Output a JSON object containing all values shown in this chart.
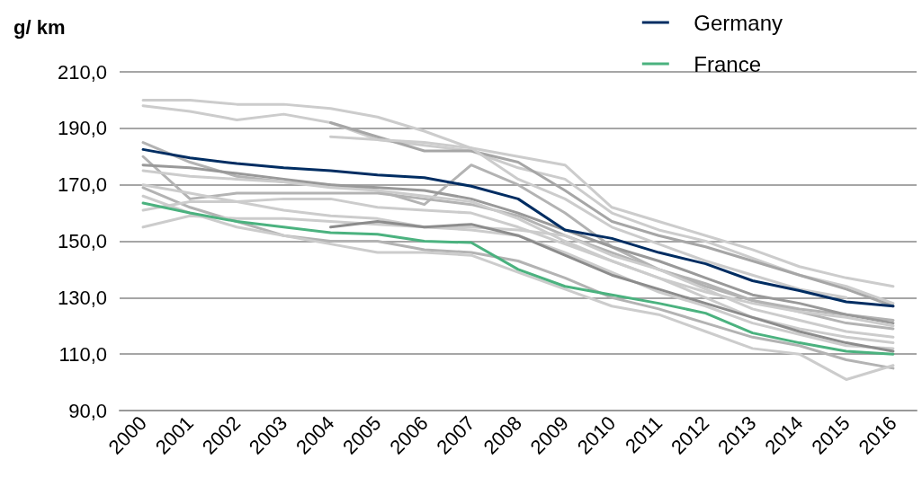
{
  "chart_data": {
    "type": "line",
    "ylabel": "g/ km",
    "categories": [
      "2000",
      "2001",
      "2002",
      "2003",
      "2004",
      "2005",
      "2006",
      "2007",
      "2008",
      "2009",
      "2010",
      "2011",
      "2012",
      "2013",
      "2014",
      "2015",
      "2016"
    ],
    "ylim": [
      90,
      210
    ],
    "yticks": [
      {
        "value": 90,
        "label": "90,0"
      },
      {
        "value": 110,
        "label": "110,0"
      },
      {
        "value": 130,
        "label": "130,0"
      },
      {
        "value": 150,
        "label": "150,0"
      },
      {
        "value": 170,
        "label": "170,0"
      },
      {
        "value": 190,
        "label": "190,0"
      },
      {
        "value": 210,
        "label": "210,0"
      }
    ],
    "grid": "y",
    "legend": "top right",
    "marker": "none",
    "line_style": "solid",
    "series": [
      {
        "color": "#cccccc",
        "values": [
          200,
          200,
          198.5,
          198.5,
          197,
          194,
          189,
          183,
          180,
          177,
          162,
          157,
          152,
          147,
          141,
          137,
          134
        ]
      },
      {
        "color": "#cccccc",
        "values": [
          198,
          196,
          193,
          195,
          192,
          186,
          184,
          182,
          176,
          172,
          160,
          154,
          150,
          144,
          138,
          134,
          128
        ]
      },
      {
        "color": "#a6a6a6",
        "values": [
          null,
          null,
          null,
          null,
          192,
          187,
          182,
          182,
          178,
          168,
          157,
          152,
          148,
          143,
          138,
          133,
          127
        ]
      },
      {
        "color": "#b3b3b3",
        "values": [
          185,
          178,
          173,
          171,
          170,
          168,
          163,
          177,
          170,
          160,
          148,
          140,
          135,
          129,
          125,
          121,
          119
        ]
      },
      {
        "color": "#b3b3b3",
        "values": [
          180,
          165,
          167,
          167,
          167,
          167,
          165,
          163,
          159,
          152,
          146,
          140,
          134,
          129,
          126,
          124,
          122
        ]
      },
      {
        "color": "#999999",
        "values": [
          177,
          176,
          174,
          172,
          170,
          169,
          168,
          165,
          160,
          154,
          148,
          143,
          137,
          131,
          128,
          124,
          121
        ]
      },
      {
        "color": "#cccccc",
        "values": [
          175,
          173,
          172,
          171,
          169,
          168,
          166,
          164,
          158,
          150,
          143,
          137,
          132,
          128,
          125,
          123,
          120
        ]
      },
      {
        "color": "#cccccc",
        "values": [
          170,
          167,
          164,
          161,
          159,
          158,
          155,
          155,
          154,
          152,
          145,
          140,
          133,
          126,
          122,
          118,
          116
        ]
      },
      {
        "color": "#b3b3b3",
        "values": [
          169,
          162,
          157,
          152,
          150,
          150,
          147,
          146,
          143,
          137,
          130,
          126,
          121,
          116,
          113,
          108,
          105
        ]
      },
      {
        "color": "#cccccc",
        "values": [
          166,
          160,
          155,
          152,
          149,
          146,
          146,
          145,
          139,
          133,
          127,
          124,
          118,
          112,
          110,
          101,
          106
        ]
      },
      {
        "color": "#cccccc",
        "values": [
          155,
          159,
          158,
          158,
          157,
          156,
          155,
          154,
          152,
          146,
          139,
          132,
          127,
          121,
          117,
          113,
          112
        ]
      },
      {
        "color": "#cccccc",
        "values": [
          161,
          164,
          164,
          165,
          165,
          162,
          161,
          160,
          155,
          149,
          143,
          137,
          130,
          123,
          119,
          116,
          114
        ]
      },
      {
        "color": "#8c8c8c",
        "values": [
          null,
          null,
          null,
          null,
          155,
          157,
          155,
          156,
          152,
          145,
          138,
          133,
          128,
          123,
          118,
          114,
          111
        ]
      },
      {
        "color": "#cccccc",
        "values": [
          null,
          null,
          null,
          null,
          187,
          186,
          185,
          183,
          172,
          165,
          155,
          149,
          143,
          138,
          133,
          130,
          null
        ]
      },
      {
        "name": "Germany",
        "color": "#002d62",
        "values": [
          182.5,
          179.5,
          177.5,
          176,
          175,
          173.5,
          172.5,
          169.5,
          165,
          154,
          151,
          146,
          142,
          136,
          132.5,
          128.5,
          127
        ]
      },
      {
        "name": "France",
        "color": "#4bb27f",
        "values": [
          163.5,
          160,
          157,
          155,
          153,
          152.5,
          150,
          149.5,
          140,
          134,
          131,
          128,
          124.5,
          117.5,
          114,
          111,
          110
        ]
      }
    ]
  }
}
